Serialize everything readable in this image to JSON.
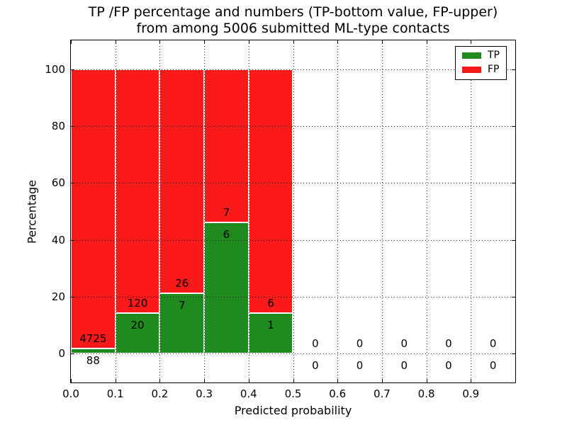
{
  "chart_data": {
    "type": "bar",
    "stacked": true,
    "title_line1": "TP /FP percentage and numbers (TP-bottom value, FP-upper)",
    "title_line2": "from among 5006 submitted ML-type contacts",
    "xlabel": "Predicted probability",
    "ylabel": "Percentage",
    "total_contacts": 5006,
    "xlim": [
      0.0,
      1.0
    ],
    "ylim": [
      -10.2,
      110.2
    ],
    "xtick_values": [
      0.0,
      0.1,
      0.2,
      0.3,
      0.4,
      0.5,
      0.6,
      0.7,
      0.8,
      0.9
    ],
    "xtick_labels": [
      "0.0",
      "0.1",
      "0.2",
      "0.3",
      "0.4",
      "0.5",
      "0.6",
      "0.7",
      "0.8",
      "0.9"
    ],
    "ytick_values": [
      0,
      20,
      40,
      60,
      80,
      100
    ],
    "ytick_labels": [
      "0",
      "20",
      "40",
      "60",
      "80",
      "100"
    ],
    "grid": "dotted",
    "grid_color": "#000000",
    "colors": {
      "tp": "#1f8b1f",
      "fp": "#fb1a1a",
      "bar_edge": "#ffffff"
    },
    "legend": {
      "position": "upper right",
      "entries": [
        {
          "label": "TP",
          "color": "#1f8b1f"
        },
        {
          "label": "FP",
          "color": "#fb1a1a"
        }
      ]
    },
    "bin_width": 0.1,
    "bins": [
      {
        "range": [
          0.0,
          0.1
        ],
        "tp_count": 88,
        "fp_count": 4725,
        "tp_pct": 1.83,
        "fp_pct": 98.17
      },
      {
        "range": [
          0.1,
          0.2
        ],
        "tp_count": 20,
        "fp_count": 120,
        "tp_pct": 14.29,
        "fp_pct": 85.71
      },
      {
        "range": [
          0.2,
          0.3
        ],
        "tp_count": 7,
        "fp_count": 26,
        "tp_pct": 21.21,
        "fp_pct": 78.79
      },
      {
        "range": [
          0.3,
          0.4
        ],
        "tp_count": 6,
        "fp_count": 7,
        "tp_pct": 46.15,
        "fp_pct": 53.85
      },
      {
        "range": [
          0.4,
          0.5
        ],
        "tp_count": 1,
        "fp_count": 6,
        "tp_pct": 14.29,
        "fp_pct": 85.71
      },
      {
        "range": [
          0.5,
          0.6
        ],
        "tp_count": 0,
        "fp_count": 0,
        "tp_pct": 0,
        "fp_pct": 0
      },
      {
        "range": [
          0.6,
          0.7
        ],
        "tp_count": 0,
        "fp_count": 0,
        "tp_pct": 0,
        "fp_pct": 0
      },
      {
        "range": [
          0.7,
          0.8
        ],
        "tp_count": 0,
        "fp_count": 0,
        "tp_pct": 0,
        "fp_pct": 0
      },
      {
        "range": [
          0.8,
          0.9
        ],
        "tp_count": 0,
        "fp_count": 0,
        "tp_pct": 0,
        "fp_pct": 0
      },
      {
        "range": [
          0.9,
          1.0
        ],
        "tp_count": 0,
        "fp_count": 0,
        "tp_pct": 0,
        "fp_pct": 0
      }
    ]
  }
}
